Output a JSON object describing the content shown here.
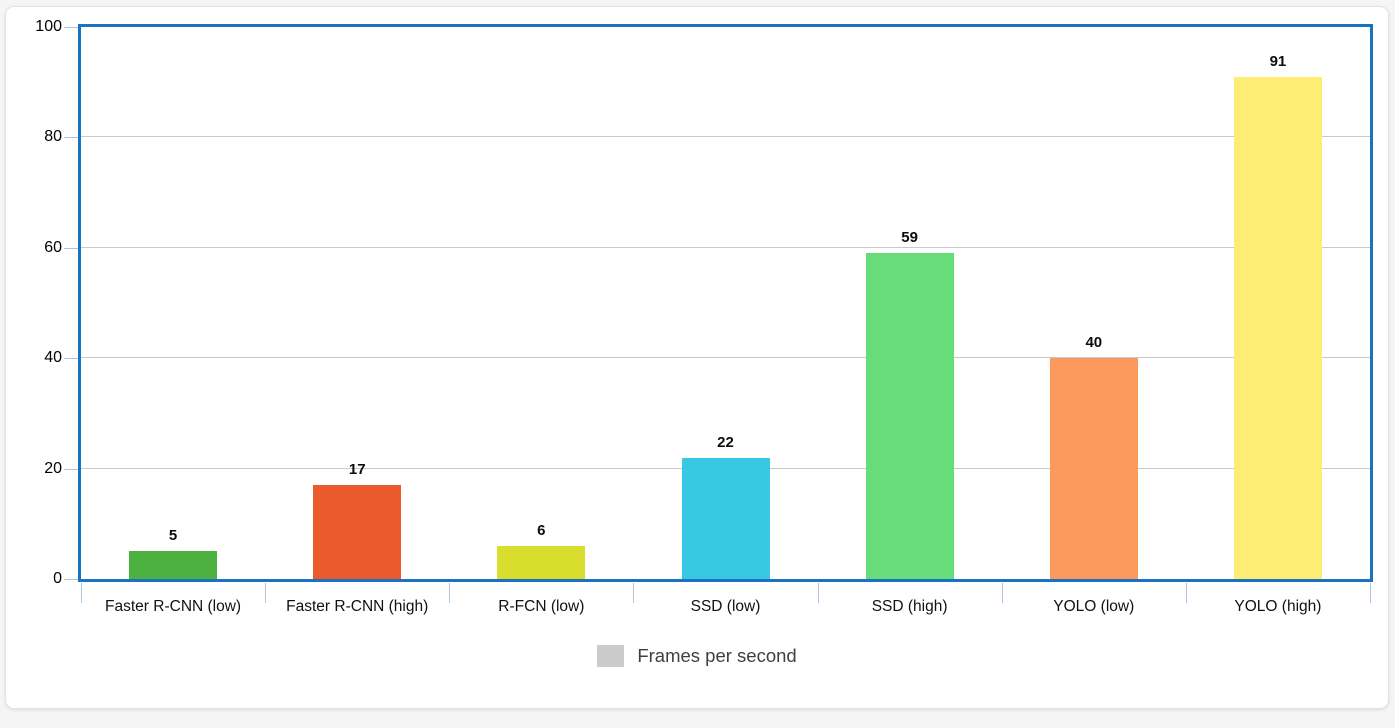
{
  "page": {
    "background_color": "#f5f5f6",
    "card_background_color": "#ffffff"
  },
  "chart": {
    "plot_border_color": "#1a72c2",
    "grid_color": "#c9c9c9",
    "tick_color": "#aac6e2",
    "axis_text_color": "#000000",
    "value_label_color": "#0d0d0d"
  },
  "legend": {
    "label": "Frames per second",
    "swatch_color": "#cbcbcb",
    "text_color": "#3f3f3f"
  },
  "chart_data": {
    "type": "bar",
    "title": "",
    "xlabel": "",
    "ylabel": "",
    "categories": [
      "Faster R-CNN (low)",
      "Faster R-CNN (high)",
      "R-FCN (low)",
      "SSD (low)",
      "SSD (high)",
      "YOLO (low)",
      "YOLO (high)"
    ],
    "series": [
      {
        "name": "Frames per second",
        "values": [
          5,
          17,
          6,
          22,
          59,
          40,
          91
        ],
        "bar_colors": [
          "#4cb140",
          "#ea5a2c",
          "#d9dd2e",
          "#38c8e1",
          "#66dd78",
          "#fc9a5e",
          "#fdee73"
        ]
      }
    ],
    "value_labels": [
      "5",
      "17",
      "6",
      "22",
      "59",
      "40",
      "91"
    ],
    "ylim": [
      0,
      100
    ],
    "yticks": [
      0,
      20,
      40,
      60,
      80,
      100
    ],
    "grid": true,
    "legend_position": "bottom-center",
    "value_labels_shown": true
  }
}
